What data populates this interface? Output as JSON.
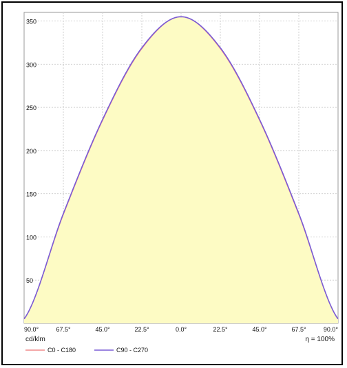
{
  "chart_data": {
    "type": "area",
    "unit_label": "cd/klm",
    "efficiency_label": "η = 100%",
    "x_tick_labels": [
      "90.0°",
      "67.5°",
      "45.0°",
      "22.5°",
      "0.0°",
      "22.5°",
      "45.0°",
      "67.5°",
      "90.0°"
    ],
    "y_ticks": [
      50,
      100,
      150,
      200,
      250,
      300,
      350
    ],
    "ylim": [
      0,
      360
    ],
    "xlim": [
      -90,
      90
    ],
    "grid": true,
    "legend_position": "bottom-left",
    "fill_color": "#fdfbc4",
    "series": [
      {
        "name": "C0 - C180",
        "color": "#f08a8a",
        "x": [
          -90,
          -67.5,
          -45,
          -22.5,
          0,
          22.5,
          45,
          67.5,
          90
        ],
        "values": [
          5,
          126,
          235,
          318,
          355,
          318,
          235,
          126,
          5
        ]
      },
      {
        "name": "C90 - C270",
        "color": "#7a5cd6",
        "x": [
          -90,
          -67.5,
          -45,
          -22.5,
          0,
          22.5,
          45,
          67.5,
          90
        ],
        "values": [
          5,
          127,
          236,
          319,
          355,
          319,
          236,
          127,
          5
        ]
      }
    ]
  }
}
